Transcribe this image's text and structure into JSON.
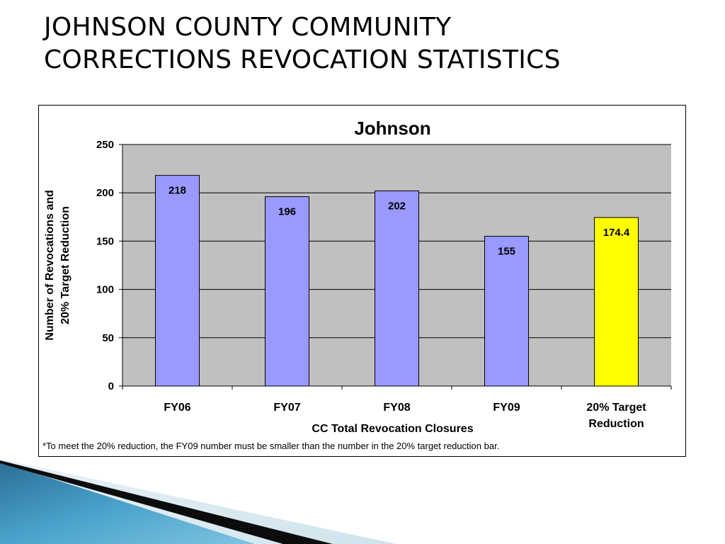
{
  "slide": {
    "title_lines": [
      "JOHNSON COUNTY COMMUNITY",
      "CORRECTIONS REVOCATION STATISTICS"
    ]
  },
  "footnote": "*To meet the 20% reduction, the FY09 number must be smaller than the number in the 20% target reduction bar.",
  "colors": {
    "plot_area": "#c0c0c0",
    "bar_fill": "#9999ff",
    "target_fill": "#ffff00"
  },
  "chart_data": {
    "type": "bar",
    "title": "Johnson",
    "xlabel": "CC Total Revocation Closures",
    "ylabel_lines": [
      "Number of Revocations and",
      "20% Target Reduction"
    ],
    "categories": [
      [
        "FY06"
      ],
      [
        "FY07"
      ],
      [
        "FY08"
      ],
      [
        "FY09"
      ],
      [
        "20% Target",
        "Reduction"
      ]
    ],
    "values": [
      218,
      196,
      202,
      155,
      174.4
    ],
    "value_labels": [
      "218",
      "196",
      "202",
      "155",
      "174.4"
    ],
    "bar_colors": [
      "#9999ff",
      "#9999ff",
      "#9999ff",
      "#9999ff",
      "#ffff00"
    ],
    "ylim": [
      0,
      250
    ],
    "yticks": [
      0,
      50,
      100,
      150,
      200,
      250
    ],
    "grid": true,
    "legend": "none"
  }
}
